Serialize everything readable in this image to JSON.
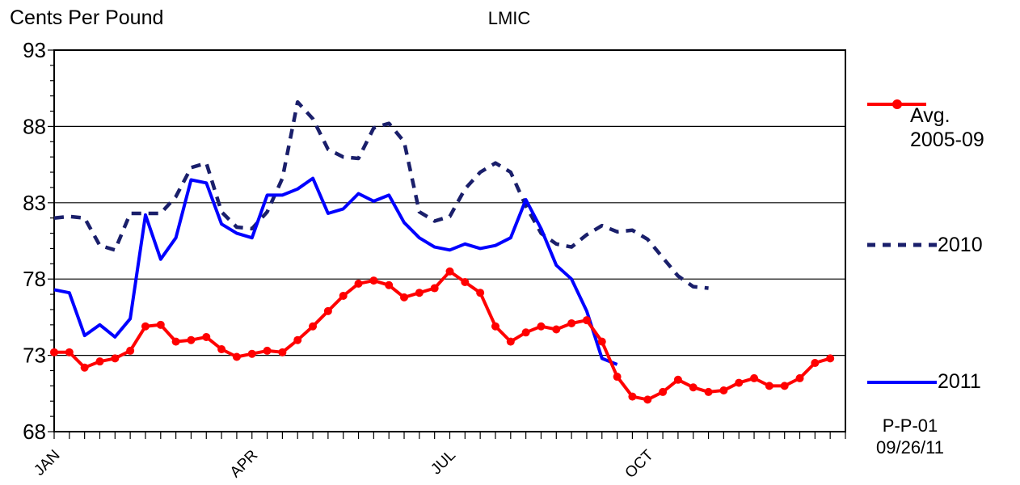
{
  "chart_data": {
    "type": "line",
    "title": "LMIC",
    "ylabel": "Cents Per Pound",
    "xlabel": "",
    "ylim": [
      68,
      93
    ],
    "yticks": [
      68,
      73,
      78,
      83,
      88,
      93
    ],
    "x_tick_labels": [
      "JAN",
      "APR",
      "JUL",
      "OCT"
    ],
    "weeks": 53,
    "grid": "horizontal",
    "legend_position": "right",
    "series": [
      {
        "name": "Avg. 2005-09",
        "color": "#ff0000",
        "style": "solid-markers",
        "values": [
          73.2,
          73.2,
          72.2,
          72.6,
          72.8,
          73.3,
          74.9,
          75.0,
          73.9,
          74.0,
          74.2,
          73.4,
          72.9,
          73.1,
          73.3,
          73.2,
          74.0,
          74.9,
          75.9,
          76.9,
          77.7,
          77.9,
          77.6,
          76.8,
          77.1,
          77.4,
          78.5,
          77.8,
          77.1,
          74.9,
          73.9,
          74.5,
          74.9,
          74.7,
          75.1,
          75.3,
          73.9,
          71.6,
          70.3,
          70.1,
          70.6,
          71.4,
          70.9,
          70.6,
          70.7,
          71.2,
          71.5,
          71.0,
          71.0,
          71.5,
          72.5,
          72.8
        ]
      },
      {
        "name": "2010",
        "color": "#1a1f6b",
        "style": "dashed",
        "values": [
          82.0,
          82.1,
          82.0,
          80.2,
          79.9,
          82.3,
          82.3,
          82.3,
          83.4,
          85.3,
          85.6,
          82.4,
          81.4,
          81.3,
          82.4,
          84.6,
          89.6,
          88.5,
          86.5,
          86.0,
          85.9,
          87.9,
          88.2,
          87.0,
          82.4,
          81.8,
          82.1,
          83.9,
          85.0,
          85.6,
          85.0,
          82.8,
          81.0,
          80.3,
          80.1,
          80.9,
          81.5,
          81.1,
          81.2,
          80.6,
          79.4,
          78.2,
          77.5,
          77.4
        ]
      },
      {
        "name": "2011",
        "color": "#0000ff",
        "style": "solid",
        "values": [
          77.3,
          77.1,
          74.3,
          75.0,
          74.2,
          75.4,
          82.2,
          79.3,
          80.7,
          84.5,
          84.3,
          81.6,
          81.0,
          80.7,
          83.5,
          83.5,
          83.9,
          84.6,
          82.3,
          82.6,
          83.6,
          83.1,
          83.5,
          81.7,
          80.7,
          80.1,
          79.9,
          80.3,
          80.0,
          80.2,
          80.7,
          83.2,
          81.3,
          78.9,
          78.0,
          75.9,
          72.8,
          72.4
        ]
      }
    ]
  },
  "legend": {
    "avg_line1": "Avg.",
    "avg_line2": "2005-09",
    "y2010": "2010",
    "y2011": "2011"
  },
  "chart_code": "P-P-01",
  "chart_date": "09/26/11"
}
